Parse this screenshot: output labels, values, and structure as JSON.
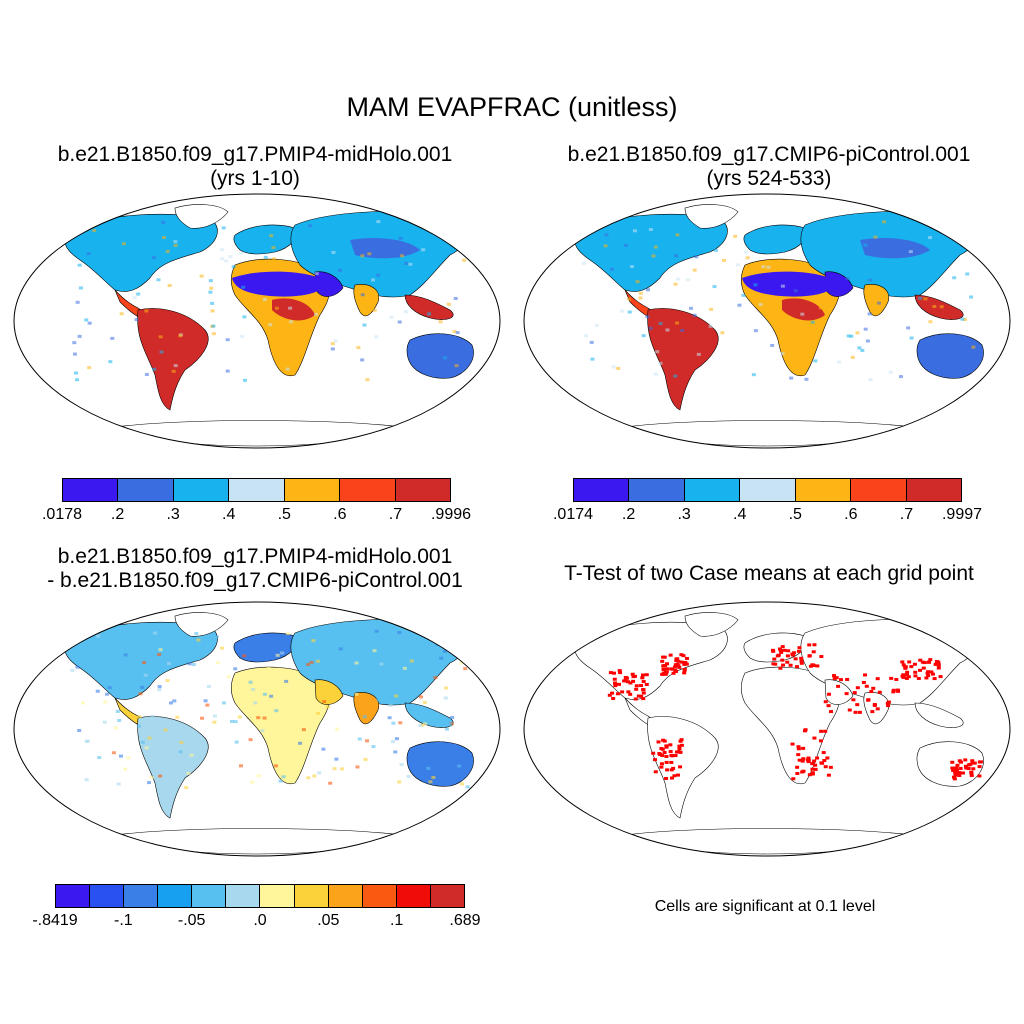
{
  "main_title": "MAM EVAPFRAC (unitless)",
  "panels": [
    {
      "id": "p1",
      "title_line1": "b.e21.B1850.f09_g17.PMIP4-midHolo.001",
      "title_line2": "(yrs 1-10)"
    },
    {
      "id": "p2",
      "title_line1": "b.e21.B1850.f09_g17.CMIP6-piControl.001",
      "title_line2": "(yrs 524-533)"
    },
    {
      "id": "p3",
      "title_line1": "b.e21.B1850.f09_g17.PMIP4-midHolo.001",
      "title_line2": "- b.e21.B1850.f09_g17.CMIP6-piControl.001"
    },
    {
      "id": "p4",
      "title_line1": "T-Test of two Case means at each grid point",
      "title_line2": ""
    }
  ],
  "colorbars": {
    "cb1": {
      "colors": [
        "#3b18f0",
        "#3a6de0",
        "#18b2ef",
        "#c8e4f4",
        "#fcb514",
        "#f9431a",
        "#d02b29"
      ],
      "labels": [
        ".0178",
        ".2",
        ".3",
        ".4",
        ".5",
        ".6",
        ".7",
        ".9996"
      ]
    },
    "cb2": {
      "colors": [
        "#3b18f0",
        "#3a6de0",
        "#18b2ef",
        "#c8e4f4",
        "#fcb514",
        "#f9431a",
        "#d02b29"
      ],
      "labels": [
        ".0174",
        ".2",
        ".3",
        ".4",
        ".5",
        ".6",
        ".7",
        ".9997"
      ]
    },
    "cb3": {
      "colors": [
        "#3b18f0",
        "#2950f0",
        "#3a7ee8",
        "#18a0f0",
        "#58c0f0",
        "#a8d8ee",
        "#fff59a",
        "#fcd23a",
        "#fca31c",
        "#f95a12",
        "#f00d08",
        "#d02b29"
      ],
      "labels": [
        "-.8419",
        "-.1",
        "-.05",
        ".0",
        ".05",
        ".1",
        ".689"
      ]
    }
  },
  "significance_color": "#ff0000",
  "note": "Cells are significant at 0.1 level"
}
